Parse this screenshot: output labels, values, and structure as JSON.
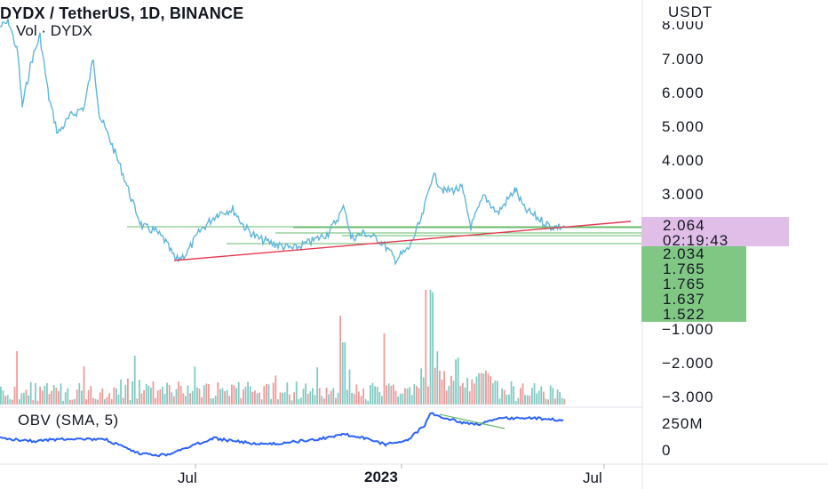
{
  "header": {
    "title": "DYDX / TetherUS, 1D, BINANCE",
    "volume_label": "Vol · DYDX"
  },
  "price_axis": {
    "currency": "USDT",
    "ticks": [
      "8.000",
      "7.000",
      "6.000",
      "5.000",
      "4.000",
      "3.000"
    ]
  },
  "current_price": {
    "value": "2.064",
    "countdown": "02:19:43",
    "bg_color": "#e1bee7"
  },
  "level_badges": {
    "values": [
      "2.034",
      "1.765",
      "1.765",
      "1.637",
      "1.522"
    ],
    "bg_color": "#81c784"
  },
  "volume_axis": {
    "ticks": [
      "−1.000",
      "−2.000",
      "−3.000"
    ]
  },
  "obv": {
    "label": "OBV (SMA, 5)",
    "ticks": [
      "250M",
      "0"
    ]
  },
  "time_axis": {
    "labels": [
      "Jul",
      "2023",
      "Jul"
    ]
  },
  "colors": {
    "price_line": "#5fb6dc",
    "trendline": "#e53950",
    "support": "#66bb6a",
    "obv": "#2962ff",
    "vol_up": "#80cbc4",
    "vol_down": "#ef9a9a"
  }
}
